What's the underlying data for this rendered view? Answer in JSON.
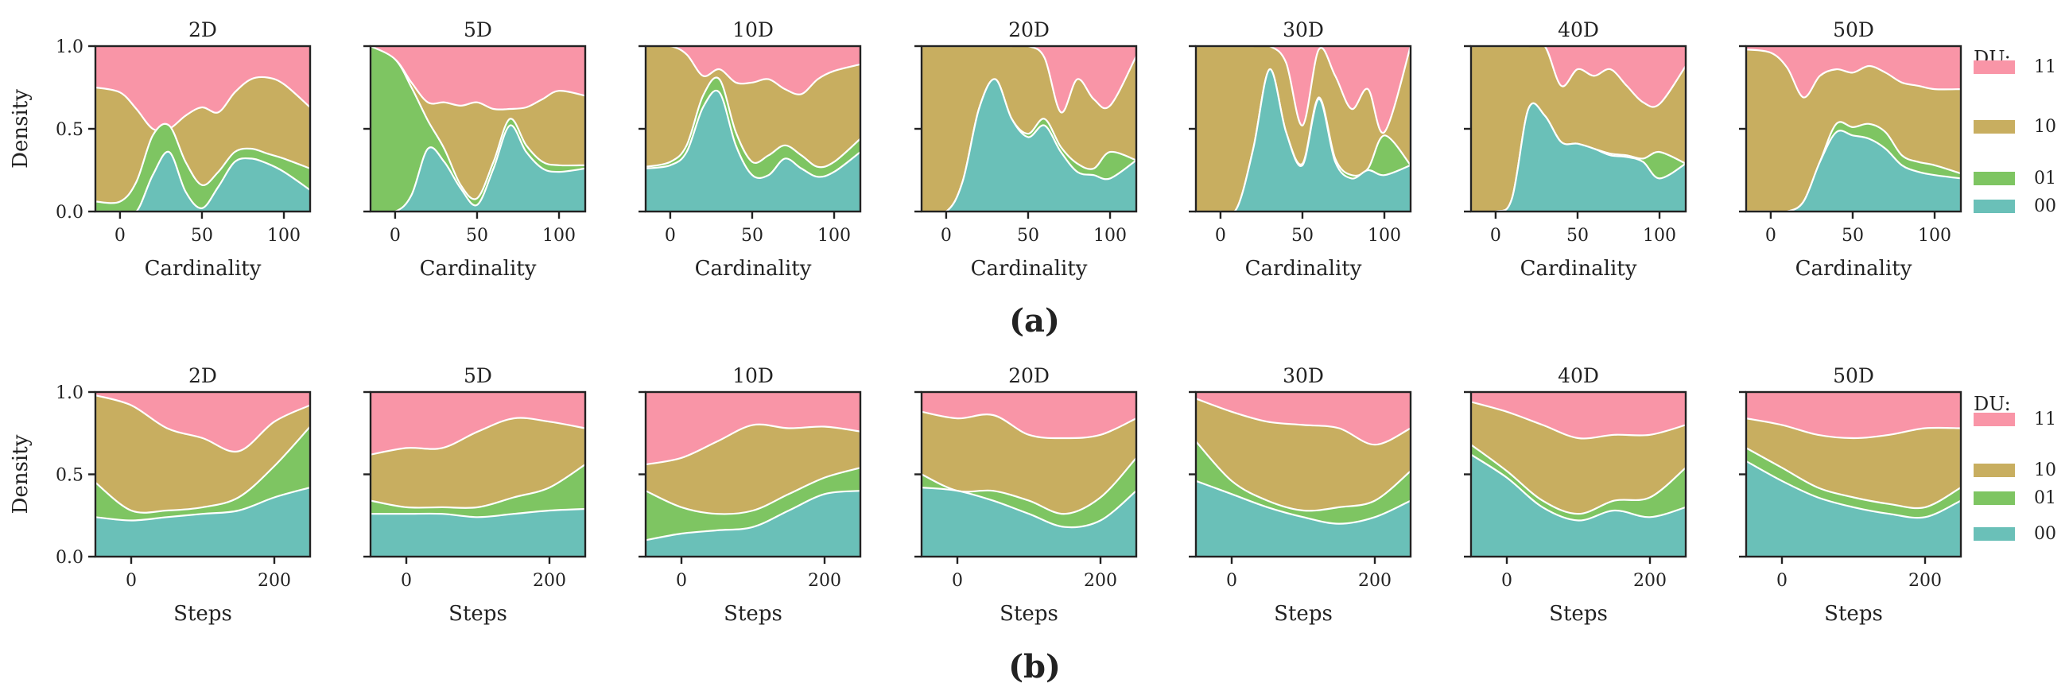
{
  "figure": {
    "row_labels": [
      "(a)",
      "(b)"
    ]
  },
  "chart_data": [
    {
      "type": "area",
      "stacking": "fill",
      "row": "a",
      "xlabel": "Cardinality",
      "ylabel": "Density",
      "xlim": [
        -15,
        116
      ],
      "ylim": [
        0,
        1
      ],
      "xticks": [
        0,
        50,
        100
      ],
      "yticks": [
        0.0,
        0.5,
        1.0
      ],
      "ytick_labels": [
        "0.0",
        "0.5",
        "1.0"
      ],
      "legend": {
        "title": "DU:",
        "entries": [
          "11",
          "10",
          "01",
          "00"
        ],
        "position": "right"
      },
      "colors": {
        "11": "#f995a7",
        "10": "#c8ae60",
        "01": "#7ec562",
        "00": "#6ac0b8"
      },
      "x": [
        -15,
        0,
        10,
        20,
        30,
        40,
        50,
        60,
        70,
        80,
        90,
        100,
        116
      ],
      "panels": [
        {
          "title": "2D",
          "cum_00": [
            0.0,
            0.0,
            0.0,
            0.22,
            0.36,
            0.12,
            0.02,
            0.15,
            0.3,
            0.32,
            0.29,
            0.24,
            0.13
          ],
          "cum_01": [
            0.06,
            0.06,
            0.18,
            0.46,
            0.52,
            0.3,
            0.16,
            0.24,
            0.36,
            0.38,
            0.35,
            0.32,
            0.26
          ],
          "cum_10": [
            0.75,
            0.72,
            0.62,
            0.5,
            0.5,
            0.58,
            0.63,
            0.6,
            0.72,
            0.8,
            0.81,
            0.77,
            0.63
          ]
        },
        {
          "title": "5D",
          "cum_00": [
            0.0,
            0.0,
            0.1,
            0.38,
            0.3,
            0.14,
            0.04,
            0.26,
            0.52,
            0.36,
            0.26,
            0.24,
            0.26
          ],
          "cum_01": [
            1.0,
            0.92,
            0.75,
            0.55,
            0.38,
            0.16,
            0.08,
            0.3,
            0.56,
            0.4,
            0.3,
            0.28,
            0.28
          ],
          "cum_10": [
            1.0,
            0.92,
            0.78,
            0.66,
            0.66,
            0.64,
            0.66,
            0.62,
            0.62,
            0.63,
            0.68,
            0.73,
            0.7
          ]
        },
        {
          "title": "10D",
          "cum_00": [
            0.26,
            0.28,
            0.36,
            0.63,
            0.72,
            0.4,
            0.22,
            0.22,
            0.32,
            0.26,
            0.21,
            0.24,
            0.36
          ],
          "cum_01": [
            0.27,
            0.3,
            0.4,
            0.7,
            0.8,
            0.48,
            0.3,
            0.34,
            0.4,
            0.34,
            0.27,
            0.3,
            0.44
          ],
          "cum_10": [
            1.0,
            1.0,
            0.95,
            0.82,
            0.86,
            0.78,
            0.78,
            0.8,
            0.74,
            0.71,
            0.8,
            0.85,
            0.89
          ]
        },
        {
          "title": "20D",
          "cum_00": [
            0.0,
            0.0,
            0.18,
            0.62,
            0.8,
            0.56,
            0.45,
            0.52,
            0.36,
            0.24,
            0.22,
            0.2,
            0.31
          ],
          "cum_01": [
            0.0,
            0.0,
            0.18,
            0.62,
            0.8,
            0.56,
            0.47,
            0.56,
            0.39,
            0.29,
            0.26,
            0.36,
            0.31
          ],
          "cum_10": [
            1.0,
            1.0,
            1.0,
            1.0,
            1.0,
            1.0,
            1.0,
            0.93,
            0.6,
            0.8,
            0.68,
            0.64,
            0.94
          ]
        },
        {
          "title": "30D",
          "cum_00": [
            0.0,
            0.0,
            0.02,
            0.38,
            0.86,
            0.48,
            0.28,
            0.68,
            0.3,
            0.2,
            0.25,
            0.22,
            0.28
          ],
          "cum_01": [
            0.0,
            0.0,
            0.02,
            0.38,
            0.86,
            0.48,
            0.29,
            0.69,
            0.32,
            0.22,
            0.26,
            0.46,
            0.28
          ],
          "cum_10": [
            1.0,
            1.0,
            1.0,
            1.0,
            1.0,
            0.9,
            0.52,
            0.98,
            0.82,
            0.62,
            0.74,
            0.48,
            1.0
          ]
        },
        {
          "title": "40D",
          "cum_00": [
            0.0,
            0.0,
            0.08,
            0.62,
            0.58,
            0.42,
            0.41,
            0.38,
            0.34,
            0.33,
            0.3,
            0.2,
            0.29
          ],
          "cum_01": [
            0.0,
            0.0,
            0.08,
            0.62,
            0.58,
            0.42,
            0.41,
            0.38,
            0.35,
            0.34,
            0.32,
            0.36,
            0.29
          ],
          "cum_10": [
            1.0,
            1.0,
            1.0,
            1.0,
            1.0,
            0.76,
            0.86,
            0.82,
            0.86,
            0.76,
            0.66,
            0.65,
            0.88
          ]
        },
        {
          "title": "50D",
          "cum_00": [
            0.0,
            0.0,
            0.0,
            0.06,
            0.3,
            0.48,
            0.46,
            0.44,
            0.38,
            0.28,
            0.24,
            0.22,
            0.2
          ],
          "cum_01": [
            0.0,
            0.0,
            0.0,
            0.06,
            0.3,
            0.53,
            0.51,
            0.53,
            0.48,
            0.34,
            0.3,
            0.28,
            0.23
          ],
          "cum_10": [
            0.98,
            0.96,
            0.87,
            0.69,
            0.82,
            0.86,
            0.84,
            0.88,
            0.84,
            0.78,
            0.76,
            0.74,
            0.74
          ]
        }
      ]
    },
    {
      "type": "area",
      "stacking": "fill",
      "row": "b",
      "xlabel": "Steps",
      "ylabel": "Density",
      "xlim": [
        -50,
        250
      ],
      "ylim": [
        0,
        1
      ],
      "xticks": [
        0,
        200
      ],
      "yticks": [
        0.0,
        0.5,
        1.0
      ],
      "ytick_labels": [
        "0.0",
        "0.5",
        "1.0"
      ],
      "legend": {
        "title": "DU:",
        "entries": [
          "11",
          "10",
          "01",
          "00"
        ],
        "position": "right"
      },
      "colors": {
        "11": "#f995a7",
        "10": "#c8ae60",
        "01": "#7ec562",
        "00": "#6ac0b8"
      },
      "x": [
        -50,
        0,
        50,
        100,
        150,
        200,
        250
      ],
      "panels": [
        {
          "title": "2D",
          "cum_00": [
            0.24,
            0.22,
            0.24,
            0.26,
            0.28,
            0.36,
            0.42
          ],
          "cum_01": [
            0.45,
            0.28,
            0.28,
            0.3,
            0.36,
            0.55,
            0.79
          ],
          "cum_10": [
            0.98,
            0.92,
            0.78,
            0.72,
            0.64,
            0.82,
            0.92
          ]
        },
        {
          "title": "5D",
          "cum_00": [
            0.26,
            0.26,
            0.26,
            0.24,
            0.26,
            0.28,
            0.29
          ],
          "cum_01": [
            0.34,
            0.3,
            0.3,
            0.3,
            0.36,
            0.42,
            0.56
          ],
          "cum_10": [
            0.62,
            0.66,
            0.66,
            0.76,
            0.84,
            0.82,
            0.78
          ]
        },
        {
          "title": "10D",
          "cum_00": [
            0.1,
            0.14,
            0.16,
            0.18,
            0.28,
            0.38,
            0.4
          ],
          "cum_01": [
            0.4,
            0.3,
            0.26,
            0.28,
            0.38,
            0.48,
            0.54
          ],
          "cum_10": [
            0.56,
            0.6,
            0.7,
            0.8,
            0.78,
            0.79,
            0.76
          ]
        },
        {
          "title": "20D",
          "cum_00": [
            0.42,
            0.4,
            0.34,
            0.26,
            0.18,
            0.22,
            0.4
          ],
          "cum_01": [
            0.5,
            0.4,
            0.4,
            0.34,
            0.26,
            0.36,
            0.6
          ],
          "cum_10": [
            0.88,
            0.84,
            0.86,
            0.74,
            0.72,
            0.74,
            0.84
          ]
        },
        {
          "title": "30D",
          "cum_00": [
            0.46,
            0.38,
            0.3,
            0.24,
            0.2,
            0.24,
            0.34
          ],
          "cum_01": [
            0.7,
            0.46,
            0.34,
            0.28,
            0.3,
            0.34,
            0.52
          ],
          "cum_10": [
            0.96,
            0.88,
            0.82,
            0.8,
            0.78,
            0.68,
            0.78
          ]
        },
        {
          "title": "40D",
          "cum_00": [
            0.62,
            0.48,
            0.3,
            0.22,
            0.28,
            0.24,
            0.3
          ],
          "cum_01": [
            0.68,
            0.52,
            0.34,
            0.26,
            0.34,
            0.36,
            0.54
          ],
          "cum_10": [
            0.94,
            0.88,
            0.8,
            0.72,
            0.74,
            0.74,
            0.8
          ]
        },
        {
          "title": "50D",
          "cum_00": [
            0.58,
            0.46,
            0.36,
            0.3,
            0.26,
            0.24,
            0.34
          ],
          "cum_01": [
            0.66,
            0.54,
            0.42,
            0.36,
            0.32,
            0.3,
            0.42
          ],
          "cum_10": [
            0.84,
            0.8,
            0.74,
            0.72,
            0.74,
            0.78,
            0.78
          ]
        }
      ]
    }
  ]
}
